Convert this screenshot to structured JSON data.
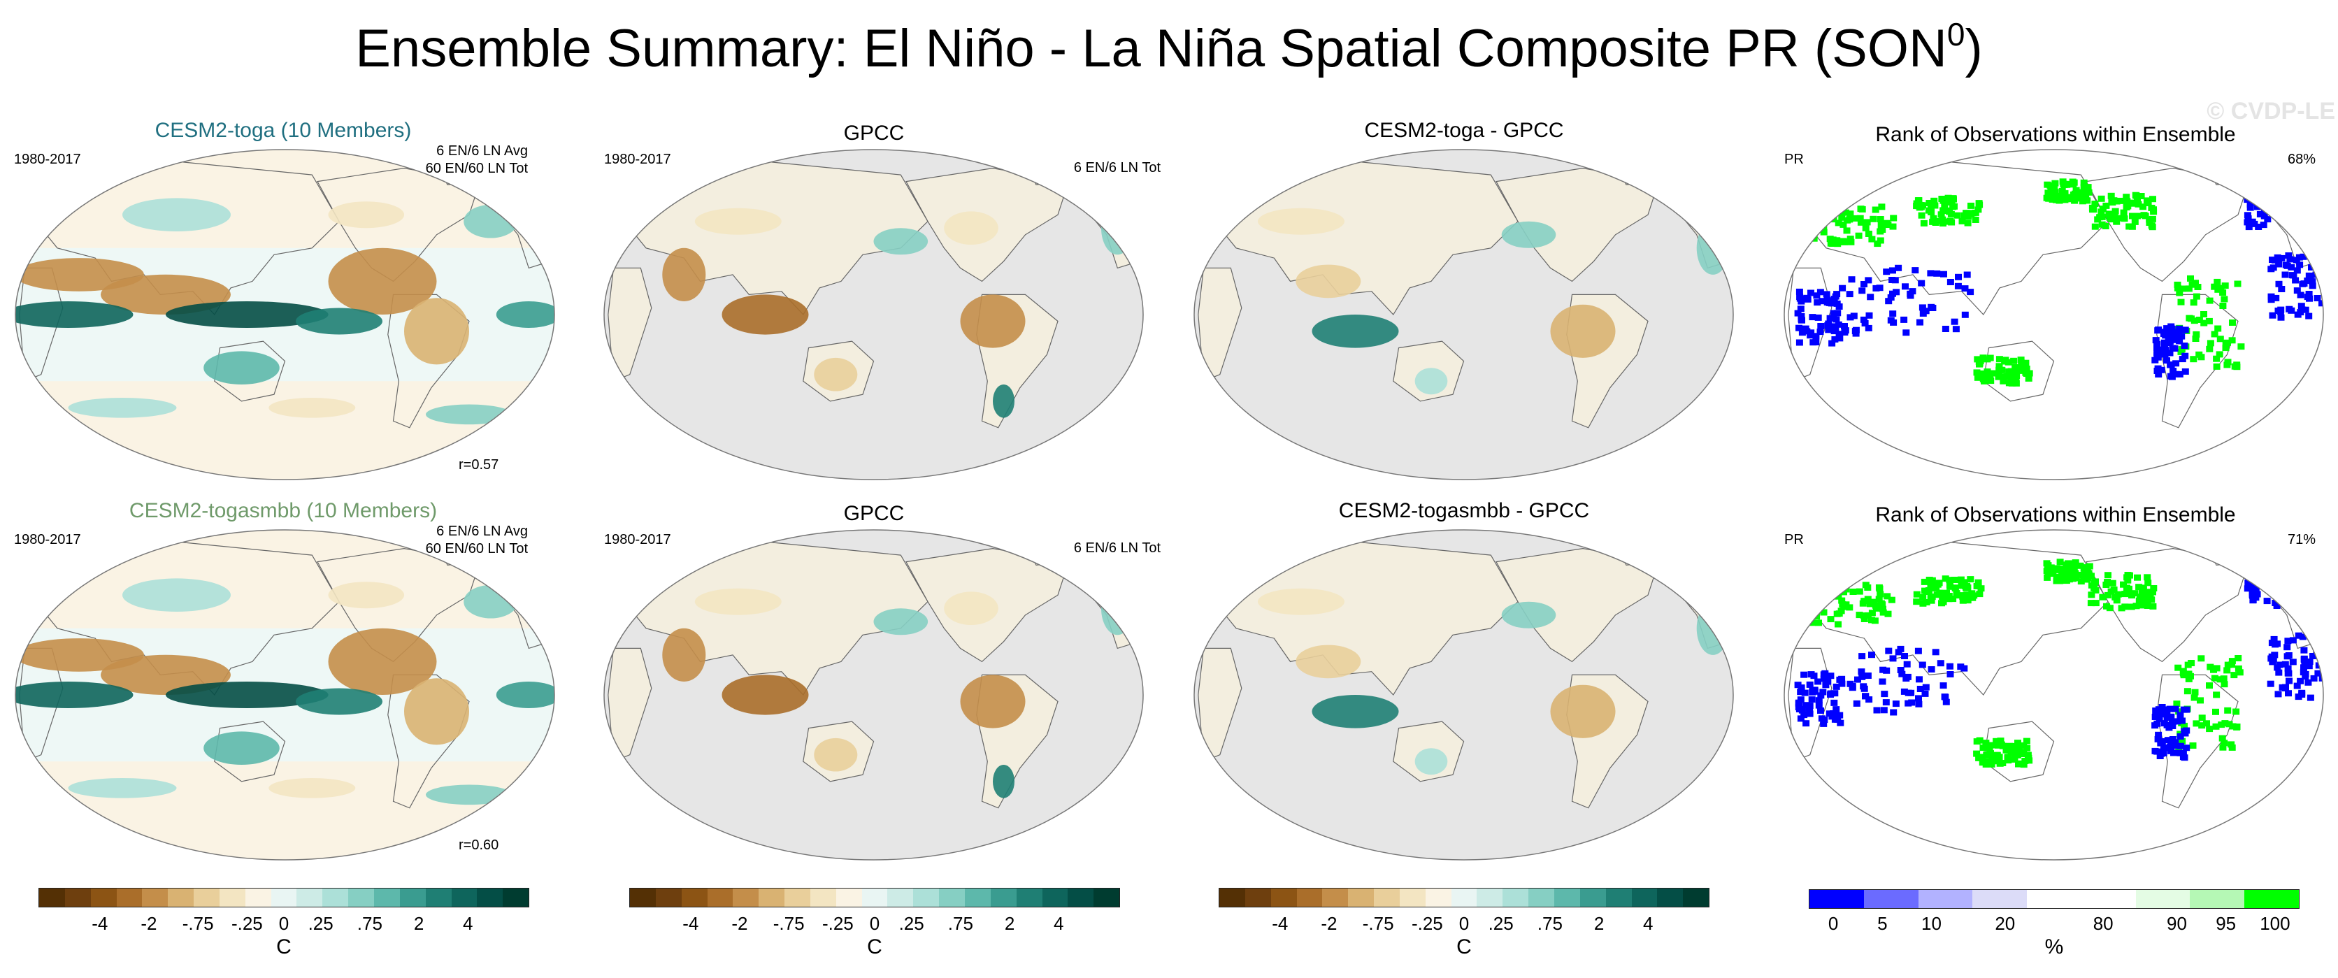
{
  "title_main": "Ensemble Summary: El Niño - La Niña Spatial Composite PR (SON",
  "title_sup": "0",
  "title_end": ")",
  "watermark": "© CVDP-LE",
  "colors": {
    "model_title_1": "#1f6f80",
    "model_title_2": "#6f9a6a",
    "land_masked": "#e6e6e6"
  },
  "rows": [
    {
      "model": {
        "title": "CESM2-toga (10 Members)",
        "period": "1980-2017",
        "note_line1": "6 EN/6 LN Avg",
        "note_line2": "60 EN/60 LN Tot",
        "correlation": "r=0.57"
      },
      "obs": {
        "title": "GPCC",
        "period": "1980-2017",
        "note": "6 EN/6 LN Tot"
      },
      "diff": {
        "title": "CESM2-toga - GPCC"
      },
      "rank": {
        "title": "Rank of Observations within Ensemble",
        "variable": "PR",
        "percent": "68%"
      }
    },
    {
      "model": {
        "title": "CESM2-togasmbb (10 Members)",
        "period": "1980-2017",
        "note_line1": "6 EN/6 LN Avg",
        "note_line2": "60 EN/60 LN Tot",
        "correlation": "r=0.60"
      },
      "obs": {
        "title": "GPCC",
        "period": "1980-2017",
        "note": "6 EN/6 LN Tot"
      },
      "diff": {
        "title": "CESM2-togasmbb - GPCC"
      },
      "rank": {
        "title": "Rank of Observations within Ensemble",
        "variable": "PR",
        "percent": "71%"
      }
    }
  ],
  "colorbar_anom": {
    "labels": [
      "-4",
      "-2",
      "-.75",
      "-.25",
      "0",
      ".25",
      ".75",
      "2",
      "4"
    ],
    "unit": "C",
    "colors": [
      "#543005",
      "#6e3f0e",
      "#8c5414",
      "#aa6e2a",
      "#c48e4a",
      "#d9b272",
      "#e9cf9b",
      "#f3e5c2",
      "#faf3e4",
      "#e9f5f3",
      "#cdebe6",
      "#ace0d8",
      "#86cfc3",
      "#5db8ab",
      "#3a9c90",
      "#1f7f74",
      "#0e655c",
      "#044e46",
      "#003c30"
    ]
  },
  "colorbar_rank": {
    "labels": [
      "0",
      "5",
      "10",
      "20",
      "80",
      "90",
      "95",
      "100"
    ],
    "unit": "%",
    "colors": [
      "#0000ff",
      "#6b6bff",
      "#b2b2ff",
      "#dcdcf8",
      "#ffffff",
      "#ffffff",
      "#e4fce4",
      "#b5f8b5",
      "#00ff00"
    ]
  }
}
